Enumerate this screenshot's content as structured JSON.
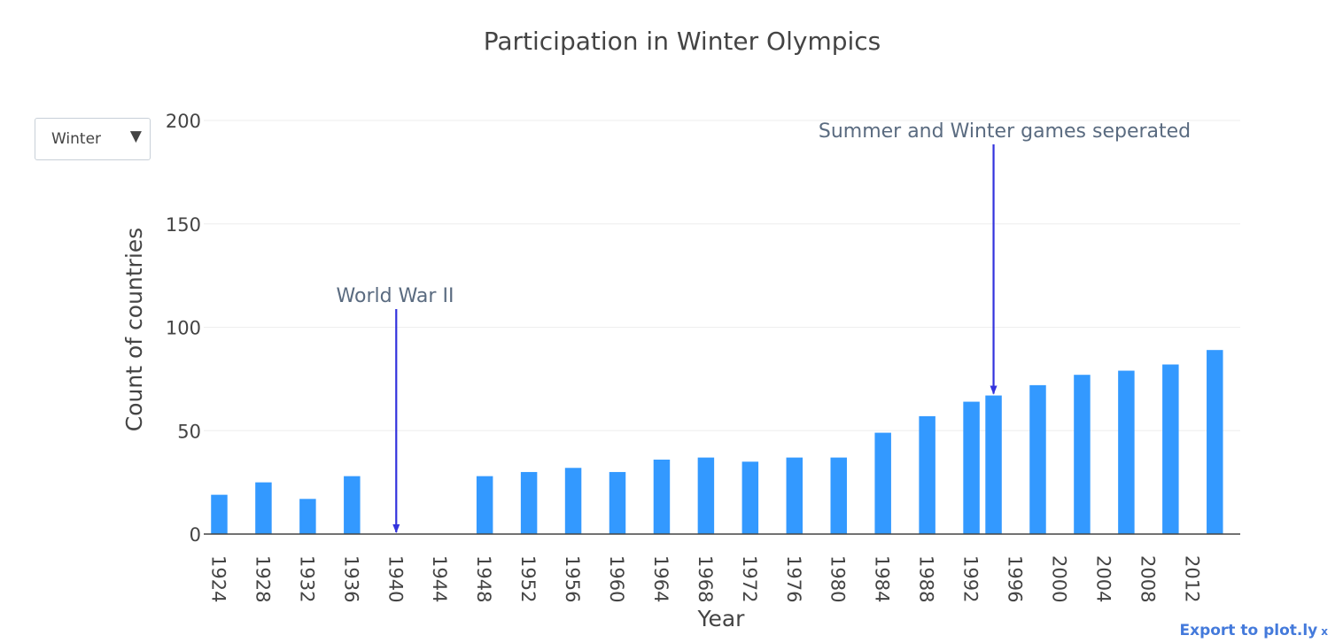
{
  "chart_data": {
    "type": "bar",
    "title": "Participation in Winter Olympics",
    "xlabel": "Year",
    "ylabel": "Count of countries",
    "ylim": [
      0,
      200
    ],
    "yticks": [
      0,
      50,
      100,
      150,
      200
    ],
    "grid": true,
    "categories": [
      "1924",
      "1928",
      "1932",
      "1936",
      "1940",
      "1944",
      "1948",
      "1952",
      "1956",
      "1960",
      "1964",
      "1968",
      "1972",
      "1976",
      "1980",
      "1984",
      "1988",
      "1992",
      "1996",
      "2000",
      "2004",
      "2008",
      "2012"
    ],
    "bars": [
      {
        "x": 1924,
        "value": 19
      },
      {
        "x": 1928,
        "value": 25
      },
      {
        "x": 1932,
        "value": 17
      },
      {
        "x": 1936,
        "value": 28
      },
      {
        "x": 1948,
        "value": 28
      },
      {
        "x": 1952,
        "value": 30
      },
      {
        "x": 1956,
        "value": 32
      },
      {
        "x": 1960,
        "value": 30
      },
      {
        "x": 1964,
        "value": 36
      },
      {
        "x": 1968,
        "value": 37
      },
      {
        "x": 1972,
        "value": 35
      },
      {
        "x": 1976,
        "value": 37
      },
      {
        "x": 1980,
        "value": 37
      },
      {
        "x": 1984,
        "value": 49
      },
      {
        "x": 1988,
        "value": 57
      },
      {
        "x": 1992,
        "value": 64
      },
      {
        "x": 1994,
        "value": 67
      },
      {
        "x": 1998,
        "value": 72
      },
      {
        "x": 2002,
        "value": 77
      },
      {
        "x": 2006,
        "value": 79
      },
      {
        "x": 2010,
        "value": 82
      },
      {
        "x": 2014,
        "value": 89
      }
    ],
    "bar_color": "#3399ff",
    "annotations": [
      {
        "text": "World War II",
        "x": 1940,
        "y": 0,
        "arrow_color": "#3333dd"
      },
      {
        "text": "Summer and Winter games seperated",
        "x": 1994,
        "y": 67,
        "arrow_color": "#3333dd"
      }
    ]
  },
  "controls": {
    "dropdown_value": "Winter",
    "dropdown_arrow": "▼",
    "export_label": "Export to plot.ly",
    "export_close": "x"
  }
}
